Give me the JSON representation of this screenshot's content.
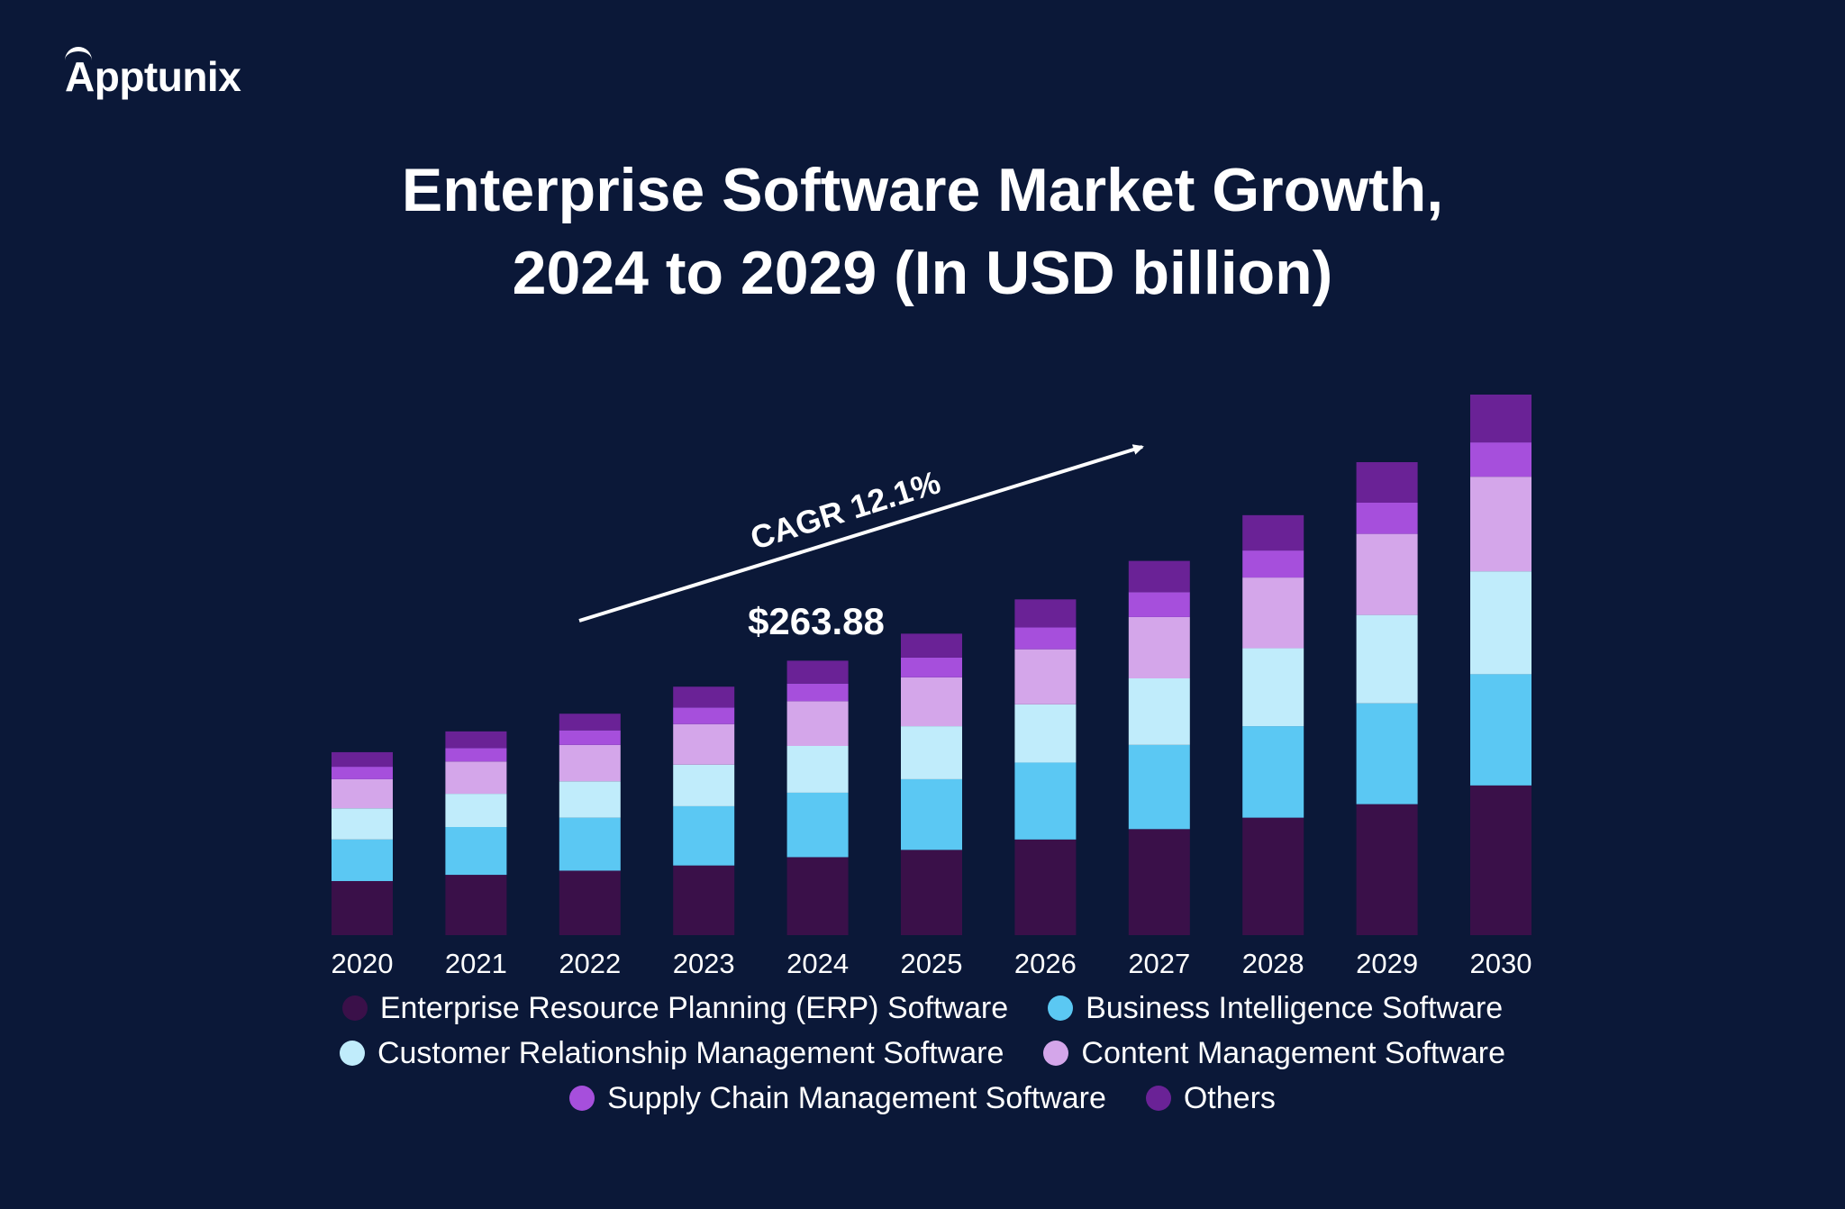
{
  "brand": {
    "name": "Apptunix"
  },
  "title": {
    "line1": "Enterprise Software Market Growth,",
    "line2": "2024 to 2029 (In USD billion)"
  },
  "annotations": {
    "cagr": "CAGR 12.1%",
    "highlight_value": "$263.88",
    "highlight_year": "2024"
  },
  "chart_data": {
    "type": "bar",
    "stacked": true,
    "title": "Enterprise Software Market Growth, 2024 to 2029 (In USD billion)",
    "categories": [
      "2020",
      "2021",
      "2022",
      "2023",
      "2024",
      "2025",
      "2026",
      "2027",
      "2028",
      "2029",
      "2030"
    ],
    "series": [
      {
        "name": "Enterprise Resource Planning (ERP) Software",
        "color": "#3a1049",
        "values": [
          52,
          58,
          62,
          67,
          75,
          82,
          92,
          102,
          113,
          126,
          144
        ]
      },
      {
        "name": "Business Intelligence Software",
        "color": "#5bc8f3",
        "values": [
          40,
          46,
          51,
          57,
          62,
          68,
          74,
          81,
          88,
          97,
          107
        ]
      },
      {
        "name": "Customer Relationship Management Software",
        "color": "#c0ecfb",
        "values": [
          30,
          32,
          35,
          40,
          45,
          51,
          56,
          64,
          75,
          85,
          99
        ]
      },
      {
        "name": "Content Management Software",
        "color": "#d4a6ea",
        "values": [
          28,
          31,
          35,
          39,
          43,
          47,
          53,
          59,
          68,
          78,
          91
        ]
      },
      {
        "name": "Supply Chain Management Software",
        "color": "#a64fdc",
        "values": [
          12,
          13,
          14,
          16,
          17,
          19,
          21,
          24,
          26,
          30,
          33
        ]
      },
      {
        "name": "Others",
        "color": "#6a2296",
        "values": [
          14,
          16,
          16,
          20,
          22,
          23,
          27,
          30,
          34,
          39,
          46
        ]
      }
    ],
    "ylim": [
      0,
      520
    ],
    "grid": false,
    "legend_position": "bottom"
  },
  "legend": {
    "rows": [
      [
        {
          "label": "Enterprise Resource Planning (ERP) Software",
          "color": "#3a1049"
        },
        {
          "label": "Business Intelligence Software",
          "color": "#5bc8f3"
        }
      ],
      [
        {
          "label": "Customer Relationship Management Software",
          "color": "#c0ecfb"
        },
        {
          "label": "Content Management Software",
          "color": "#d4a6ea"
        }
      ],
      [
        {
          "label": "Supply Chain Management Software",
          "color": "#a64fdc"
        },
        {
          "label": "Others",
          "color": "#6a2296"
        }
      ]
    ]
  }
}
